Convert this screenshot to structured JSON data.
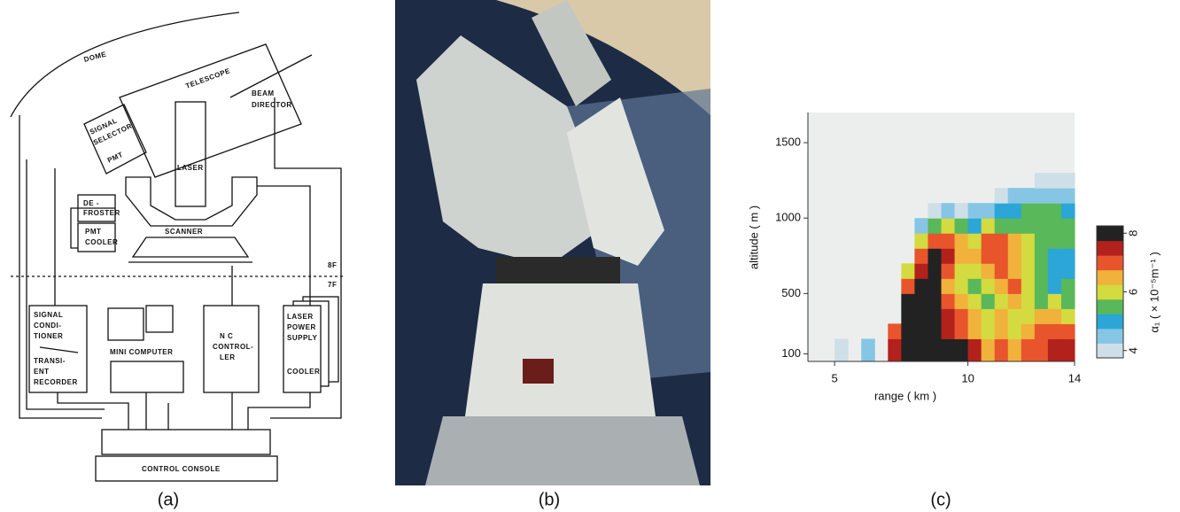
{
  "diagram": {
    "caption": "(a)",
    "dome": "DOME",
    "telescope": "TELESCOPE",
    "beam_director": [
      "BEAM",
      "DIRECTOR"
    ],
    "signal_selector": [
      "SIGNAL",
      "SELECTOR"
    ],
    "pmt": "PMT",
    "laser": "LASER",
    "defroster": [
      "DE -",
      "FROSTER"
    ],
    "pmt_cooler": [
      "PMT",
      "COOLER"
    ],
    "scanner": "SCANNER",
    "floor_upper": "8F",
    "floor_lower": "7F",
    "signal_conditioner": [
      "SIGNAL",
      "CONDI-",
      "TIONER",
      "TRANSI-",
      "ENT",
      "RECORDER"
    ],
    "mini_computer": "MINI COMPUTER",
    "nc_controller": [
      "N C",
      "CONTROL-",
      "LER"
    ],
    "laser_power_supply": [
      "LASER",
      "POWER",
      "SUPPLY",
      "COOLER"
    ],
    "control_console": "CONTROL CONSOLE"
  },
  "photo": {
    "caption": "(b)"
  },
  "chart_data": {
    "type": "heatmap",
    "caption": "(c)",
    "xlabel": "range ( km )",
    "ylabel": "altitude ( m )",
    "xlim": [
      4,
      14
    ],
    "xticks": [
      5,
      10,
      14
    ],
    "ylim": [
      50,
      1700
    ],
    "yticks": [
      100,
      500,
      1000,
      1500
    ],
    "xbins": [
      4,
      4.5,
      5,
      5.5,
      6,
      6.5,
      7,
      7.5,
      8,
      8.5,
      9,
      9.5,
      10,
      10.5,
      11,
      11.5,
      12,
      12.5,
      13,
      13.5,
      14
    ],
    "ybins": [
      50,
      200,
      300,
      400,
      500,
      600,
      700,
      800,
      900,
      1000,
      1100,
      1200,
      1300
    ],
    "z": [
      [
        null,
        null,
        4.2,
        null,
        4.5,
        null,
        7.5,
        8,
        8,
        8,
        8,
        8,
        7.5,
        6.5,
        7,
        6.5,
        7,
        7,
        7.5,
        7.5
      ],
      [
        null,
        null,
        null,
        null,
        null,
        null,
        7,
        8,
        8,
        8,
        7.5,
        7,
        6.5,
        6,
        6.5,
        6,
        6.5,
        7,
        7,
        7
      ],
      [
        null,
        null,
        null,
        null,
        null,
        null,
        null,
        8,
        8,
        8,
        7.5,
        7,
        6.5,
        6,
        6.5,
        6,
        6,
        6.5,
        6.5,
        6
      ],
      [
        null,
        null,
        null,
        null,
        null,
        null,
        null,
        8,
        8,
        8,
        7,
        6.5,
        6,
        5.5,
        6,
        6.5,
        6,
        5.5,
        6,
        5.5
      ],
      [
        null,
        null,
        null,
        null,
        null,
        null,
        null,
        7,
        8,
        8,
        6.5,
        6,
        5.5,
        6,
        6.5,
        7,
        6,
        5.5,
        5,
        5.5
      ],
      [
        null,
        null,
        null,
        null,
        null,
        null,
        null,
        6,
        7.5,
        8,
        7,
        6,
        6,
        6.5,
        7,
        6.5,
        6,
        5.5,
        5,
        5
      ],
      [
        null,
        null,
        null,
        null,
        null,
        null,
        null,
        null,
        7,
        8,
        7.5,
        6.5,
        6.5,
        7,
        7,
        6.5,
        6,
        5.5,
        5,
        5
      ],
      [
        null,
        null,
        null,
        null,
        null,
        null,
        null,
        null,
        6,
        7,
        7,
        6.5,
        6,
        7,
        7,
        6.5,
        6,
        5.5,
        5.5,
        5.5
      ],
      [
        null,
        null,
        null,
        null,
        null,
        null,
        null,
        null,
        4.5,
        5.5,
        6,
        5.5,
        5,
        6,
        5.5,
        5.5,
        5.5,
        5.5,
        5.5,
        5.5
      ],
      [
        null,
        null,
        null,
        null,
        null,
        null,
        null,
        null,
        null,
        4.2,
        4.5,
        4.2,
        4.5,
        4.5,
        5,
        5,
        5.5,
        5.5,
        5.5,
        5
      ],
      [
        null,
        null,
        null,
        null,
        null,
        null,
        null,
        null,
        null,
        null,
        null,
        null,
        null,
        null,
        4.2,
        4.5,
        4.5,
        4.5,
        4.5,
        4.5
      ],
      [
        null,
        null,
        null,
        null,
        null,
        null,
        null,
        null,
        null,
        null,
        null,
        null,
        null,
        null,
        null,
        null,
        null,
        4.2,
        4.2,
        4.2
      ]
    ],
    "zlim": [
      3.75,
      8.25
    ],
    "zticks": [
      4,
      6,
      8
    ],
    "colorbar_label": "α₁ ( × 10⁻⁵m⁻¹ )",
    "colors": [
      "#cfdfe8",
      "#86c6e4",
      "#2ba6d6",
      "#58b85a",
      "#d3db40",
      "#f0b23a",
      "#e8542b",
      "#b3211d",
      "#222222"
    ],
    "background": "#eceeee"
  }
}
